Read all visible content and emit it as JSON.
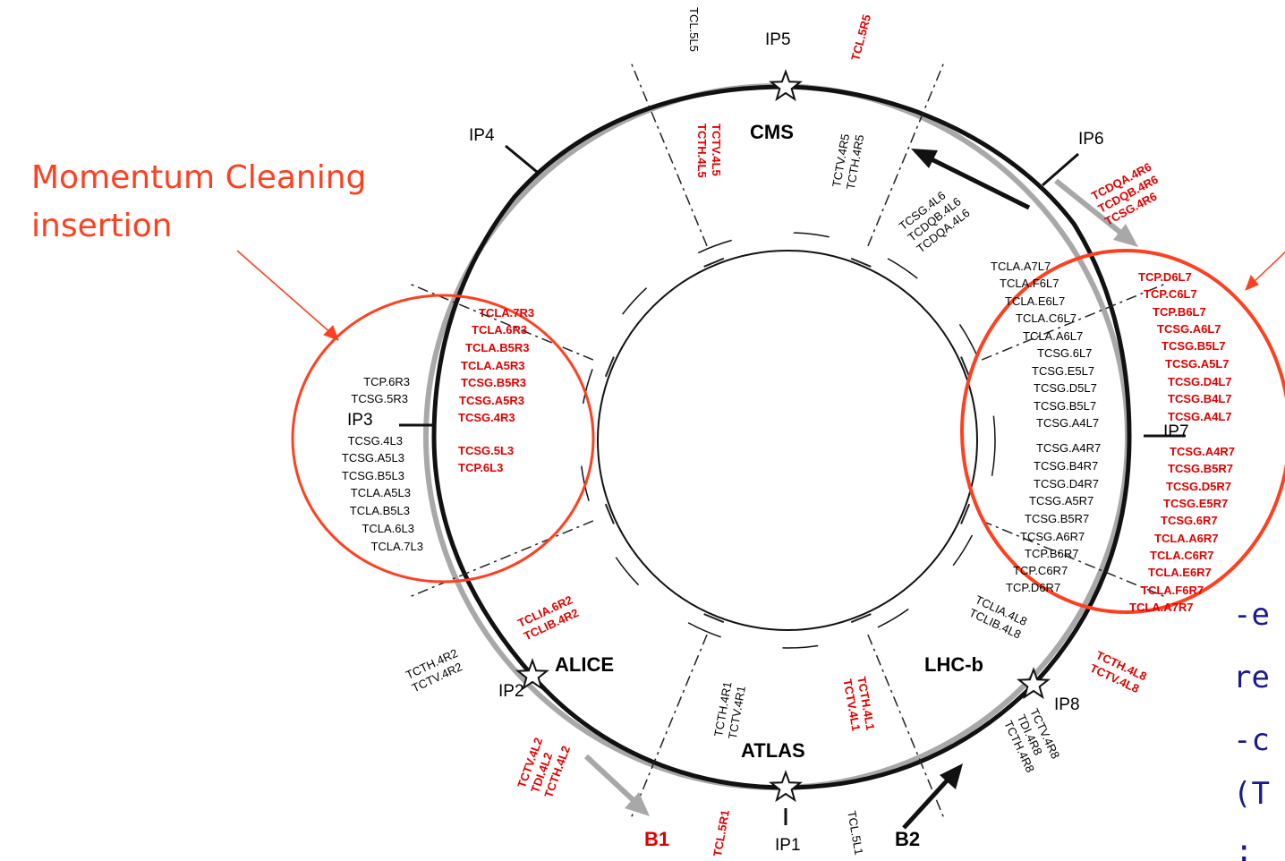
{
  "annotation": {
    "line1": "Momentum Cleaning",
    "line2": "insertion"
  },
  "ip_labels": [
    "IP1",
    "IP2",
    "IP3",
    "IP4",
    "IP5",
    "IP6",
    "IP7",
    "IP8"
  ],
  "experiments": [
    "CMS",
    "ALICE",
    "LHC-b",
    "ATLAS"
  ],
  "beams": [
    {
      "name": "B1",
      "color": "#e00000"
    },
    {
      "name": "B2",
      "color": "#000000"
    }
  ],
  "cut_text": [
    "-e",
    "re",
    "-c",
    "(T",
    ":"
  ],
  "collimator_groups": [
    {
      "color": "#000000",
      "labels": [
        "TCL.5L5"
      ]
    },
    {
      "color": "#e00000",
      "labels": [
        "TCL.5R5"
      ]
    },
    {
      "color": "#e00000",
      "labels": [
        "TCTV.4L5",
        "TCTH.4L5"
      ]
    },
    {
      "color": "#000000",
      "labels": [
        "TCTV.4R5",
        "TCTH.4R5"
      ]
    },
    {
      "color": "#000000",
      "labels": [
        "TCSG.4L6",
        "TCDQB.4L6",
        "TCDQA.4L6"
      ]
    },
    {
      "color": "#e00000",
      "labels": [
        "TCDQA.4R6",
        "TCDQB.4R6",
        "TCSG.4R6"
      ]
    },
    {
      "color": "#000000",
      "labels": [
        "TCP.6R3",
        "TCSG.5R3",
        "TCSG.4L3",
        "TCSG.A5L3",
        "TCSG.B5L3",
        "TCLA.A5L3",
        "TCLA.B5L3",
        "TCLA.6L3",
        "TCLA.7L3"
      ]
    },
    {
      "color": "#e00000",
      "labels": [
        "TCLA.7R3",
        "TCLA.6R3",
        "TCLA.B5R3",
        "TCLA.A5R3",
        "TCSG.B5R3",
        "TCSG.A5R3",
        "TCSG.4R3",
        "TCSG.5L3",
        "TCP.6L3"
      ]
    },
    {
      "color": "#000000",
      "labels": [
        "TCLA.A7L7",
        "TCLA.F6L7",
        "TCLA.E6L7",
        "TCLA.C6L7",
        "TCLA.A6L7",
        "TCSG.6L7",
        "TCSG.E5L7",
        "TCSG.D5L7",
        "TCSG.B5L7",
        "TCSG.A4L7",
        "TCSG.A4R7",
        "TCSG.B4R7",
        "TCSG.D4R7",
        "TCSG.A5R7",
        "TCSG.B5R7",
        "TCSG.A6R7",
        "TCP.B6R7",
        "TCP.C6R7",
        "TCP.D6R7"
      ]
    },
    {
      "color": "#e00000",
      "labels": [
        "TCP.D6L7",
        "TCP.C6L7",
        "TCP.B6L7",
        "TCSG.A6L7",
        "TCSG.B5L7",
        "TCSG.A5L7",
        "TCSG.D4L7",
        "TCSG.B4L7",
        "TCSG.A4L7",
        "TCSG.A4R7",
        "TCSG.B5R7",
        "TCSG.D5R7",
        "TCSG.E5R7",
        "TCSG.6R7",
        "TCLA.A6R7",
        "TCLA.C6R7",
        "TCLA.E6R7",
        "TCLA.F6R7",
        "TCLA.A7R7"
      ]
    },
    {
      "color": "#e00000",
      "labels": [
        "TCLIA.6R2",
        "TCLIB.4R2"
      ]
    },
    {
      "color": "#000000",
      "labels": [
        "TCTH.4R2",
        "TCTV.4R2"
      ]
    },
    {
      "color": "#000000",
      "labels": [
        "TCLIA.4L8",
        "TCLIB.4L8"
      ]
    },
    {
      "color": "#e00000",
      "labels": [
        "TCTH.4L8",
        "TCTV.4L8"
      ]
    },
    {
      "color": "#000000",
      "labels": [
        "TCTH.4R1",
        "TCTV.4R1"
      ]
    },
    {
      "color": "#e00000",
      "labels": [
        "TCTH.4L1",
        "TCTV.4L1"
      ]
    },
    {
      "color": "#e00000",
      "labels": [
        "TCTV.4L2",
        "TDI.4L2",
        "TCTH.4L2"
      ]
    },
    {
      "color": "#000000",
      "labels": [
        "TCTV.4R8",
        "TDI.4R8",
        "TCTH.4R8"
      ]
    },
    {
      "color": "#e00000",
      "labels": [
        "TCL.5R1"
      ]
    },
    {
      "color": "#000000",
      "labels": [
        "TCL.5L1"
      ]
    }
  ]
}
